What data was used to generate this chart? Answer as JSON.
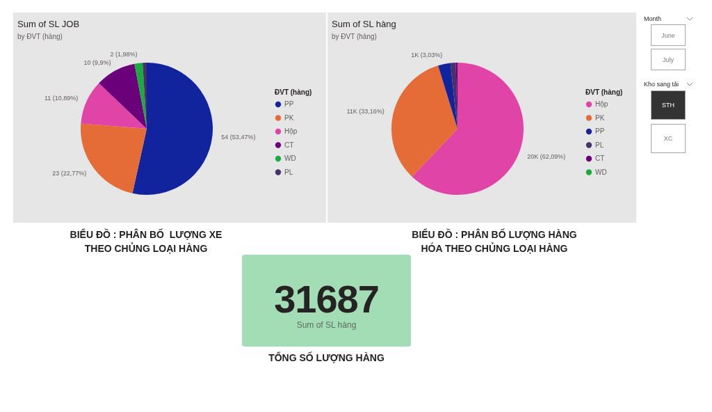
{
  "chart_data": [
    {
      "type": "pie",
      "title": "Sum of SL JOB",
      "subtitle": "by ĐVT (hàng)",
      "legend_title": "ĐVT (hàng)",
      "legend": "right",
      "categories": [
        "PP",
        "PK",
        "Hộp",
        "CT",
        "WD",
        "PL"
      ],
      "values": [
        54,
        23,
        11,
        10,
        2,
        1
      ],
      "colors": [
        "#12239e",
        "#e66c37",
        "#e044a7",
        "#6b007b",
        "#1aab40",
        "#463268"
      ],
      "value_labels": [
        "54 (53,47%)",
        "23 (22,77%)",
        "11 (10,89%)",
        "10 (9,9%)",
        "2 (1,98%)",
        null
      ],
      "annotations": [
        "BIỂU ĐỒ : PHÂN BỐ  LƯỢNG XE THEO CHỦNG LOẠI HÀNG"
      ]
    },
    {
      "type": "pie",
      "title": "Sum of SL hàng",
      "subtitle": "by ĐVT (hàng)",
      "legend_title": "ĐVT (hàng)",
      "legend": "right",
      "categories": [
        "Hộp",
        "PK",
        "PP",
        "PL",
        "CT",
        "WD"
      ],
      "values": [
        19675,
        10507,
        960,
        412,
        133,
        null
      ],
      "colors": [
        "#e044a7",
        "#e66c37",
        "#12239e",
        "#463268",
        "#6b007b",
        "#1aab40"
      ],
      "value_labels": [
        "20K (62,09%)",
        "11K (33,16%)",
        "1K (3,03%)",
        null,
        null,
        null
      ],
      "annotations": [
        "BIỂU ĐỒ : PHÂN BỐ LƯỢNG HÀNG HÓA THEO CHỦNG LOẠI HÀNG"
      ]
    },
    {
      "type": "other",
      "values": [
        31687
      ],
      "data_labels": true,
      "subtitle": "Sum of SL hàng",
      "annotations": [
        "TỔNG SỐ LƯỢNG HÀNG"
      ]
    },
    {
      "type": "other",
      "title": "Month",
      "categories": [
        "June",
        "July"
      ],
      "colors": [
        "#ffffff",
        "#ffffff"
      ]
    },
    {
      "type": "other",
      "title": "Kho sang tải",
      "categories": [
        "STH",
        "XC"
      ],
      "colors": [
        "#333333",
        "#ffffff"
      ]
    }
  ]
}
